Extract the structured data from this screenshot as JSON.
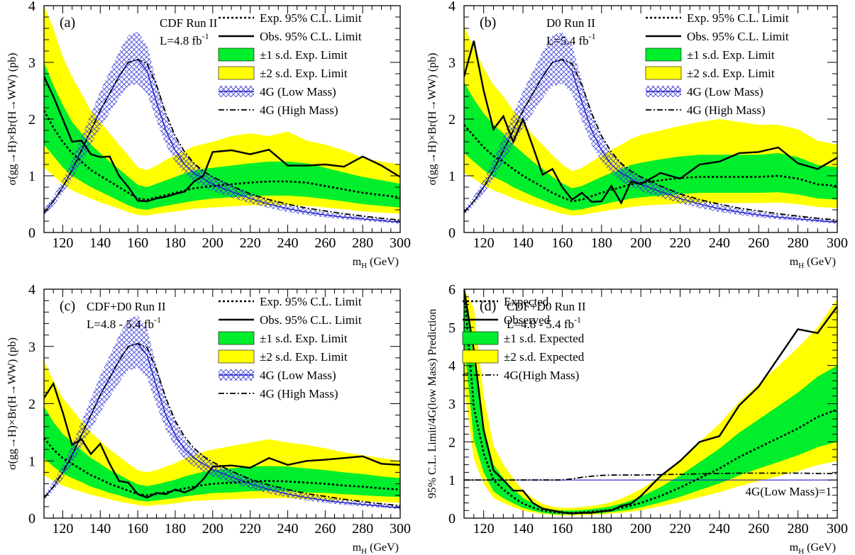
{
  "chart_data": [
    {
      "type": "line",
      "panel_label": "(a)",
      "experiment": "CDF Run II",
      "luminosity": "L=4.8 fb",
      "luminosity_sup": "-1",
      "xlabel": "m",
      "xlabel_sub": "H",
      "xlabel_unit": " (GeV)",
      "ylabel": "σ(gg→H)×Br(H→WW) (pb)",
      "xlim": [
        110,
        300
      ],
      "ylim": [
        0,
        4
      ],
      "xticks": [
        120,
        140,
        160,
        180,
        200,
        220,
        240,
        260,
        280,
        300
      ],
      "yticks": [
        0,
        1,
        2,
        3,
        4
      ],
      "legend": [
        "Exp. 95% C.L. Limit",
        "Obs. 95% C.L. Limit",
        "±1 s.d. Exp. Limit",
        "±2 s.d. Exp. Limit",
        "4G (Low Mass)",
        "4G (High Mass)"
      ],
      "x": [
        110,
        115,
        120,
        125,
        130,
        135,
        140,
        145,
        150,
        155,
        160,
        165,
        170,
        175,
        180,
        185,
        190,
        195,
        200,
        210,
        220,
        230,
        240,
        250,
        260,
        270,
        280,
        290,
        300
      ],
      "series": [
        {
          "name": "Exp. 95% C.L. Limit",
          "values": [
            2.15,
            1.85,
            1.6,
            1.4,
            1.25,
            1.1,
            1.0,
            0.9,
            0.8,
            0.7,
            0.6,
            0.58,
            0.62,
            0.66,
            0.7,
            0.74,
            0.78,
            0.8,
            0.82,
            0.85,
            0.88,
            0.9,
            0.9,
            0.88,
            0.82,
            0.76,
            0.7,
            0.66,
            0.62
          ]
        },
        {
          "name": "Obs. 95% C.L. Limit",
          "values": [
            2.75,
            2.4,
            2.0,
            1.6,
            1.62,
            1.38,
            1.33,
            1.34,
            1.0,
            0.8,
            0.56,
            0.55,
            0.6,
            0.63,
            0.68,
            0.72,
            0.9,
            1.0,
            1.42,
            1.45,
            1.38,
            1.46,
            1.18,
            1.18,
            1.2,
            1.16,
            1.34,
            1.18,
            0.98
          ]
        },
        {
          "name": "±1 s.d. Exp. Limit",
          "lower": [
            1.55,
            1.35,
            1.15,
            1.0,
            0.9,
            0.8,
            0.72,
            0.64,
            0.56,
            0.48,
            0.42,
            0.4,
            0.44,
            0.47,
            0.5,
            0.53,
            0.56,
            0.58,
            0.6,
            0.62,
            0.64,
            0.65,
            0.65,
            0.63,
            0.59,
            0.55,
            0.5,
            0.47,
            0.44
          ],
          "upper": [
            3.0,
            2.6,
            2.25,
            1.95,
            1.75,
            1.55,
            1.4,
            1.25,
            1.12,
            0.98,
            0.84,
            0.8,
            0.86,
            0.92,
            0.98,
            1.04,
            1.09,
            1.12,
            1.14,
            1.18,
            1.22,
            1.25,
            1.25,
            1.22,
            1.14,
            1.06,
            0.98,
            0.92,
            0.86
          ]
        },
        {
          "name": "±2 s.d. Exp. Limit",
          "lower": [
            1.15,
            1.0,
            0.85,
            0.74,
            0.67,
            0.6,
            0.53,
            0.48,
            0.42,
            0.36,
            0.31,
            0.3,
            0.33,
            0.35,
            0.37,
            0.39,
            0.42,
            0.43,
            0.44,
            0.46,
            0.48,
            0.48,
            0.48,
            0.47,
            0.44,
            0.41,
            0.37,
            0.35,
            0.33
          ],
          "upper": [
            4.0,
            3.6,
            3.1,
            2.75,
            2.45,
            2.15,
            1.95,
            1.75,
            1.55,
            1.36,
            1.15,
            1.1,
            1.18,
            1.28,
            1.36,
            1.44,
            1.52,
            1.56,
            1.6,
            1.7,
            1.75,
            1.7,
            1.78,
            1.62,
            1.55,
            1.45,
            1.32,
            1.25,
            1.2
          ]
        }
      ]
    },
    {
      "type": "line",
      "panel_label": "(b)",
      "experiment": "D0 Run II",
      "luminosity": "L=5.4 fb",
      "luminosity_sup": "-1",
      "xlabel": "m",
      "xlabel_sub": "H",
      "xlabel_unit": " (GeV)",
      "ylabel": "σ(gg→H)×Br(H→WW) (pb)",
      "xlim": [
        110,
        300
      ],
      "ylim": [
        0,
        4
      ],
      "xticks": [
        120,
        140,
        160,
        180,
        200,
        220,
        240,
        260,
        280,
        300
      ],
      "yticks": [
        0,
        1,
        2,
        3,
        4
      ],
      "legend": [
        "Exp. 95% C.L. Limit",
        "Obs. 95% C.L. Limit",
        "±1 s.d. Exp. Limit",
        "±2 s.d. Exp. Limit",
        "4G (Low Mass)",
        "4G (High Mass)"
      ],
      "x": [
        110,
        115,
        120,
        125,
        130,
        135,
        140,
        145,
        150,
        155,
        160,
        165,
        170,
        175,
        180,
        185,
        190,
        195,
        200,
        210,
        220,
        230,
        240,
        250,
        260,
        270,
        280,
        290,
        300
      ],
      "series": [
        {
          "name": "Exp. 95% C.L. Limit",
          "values": [
            1.9,
            1.7,
            1.5,
            1.35,
            1.25,
            1.12,
            1.0,
            0.9,
            0.8,
            0.7,
            0.62,
            0.55,
            0.58,
            0.64,
            0.7,
            0.75,
            0.8,
            0.85,
            0.88,
            0.92,
            0.96,
            0.98,
            0.98,
            0.98,
            0.98,
            1.0,
            0.95,
            0.85,
            0.82
          ]
        },
        {
          "name": "Obs. 95% C.L. Limit",
          "values": [
            2.75,
            3.38,
            2.5,
            1.82,
            2.05,
            1.6,
            2.0,
            1.52,
            1.02,
            1.12,
            0.8,
            0.58,
            0.7,
            0.54,
            0.55,
            0.82,
            0.52,
            0.9,
            0.85,
            1.05,
            0.95,
            1.2,
            1.25,
            1.4,
            1.42,
            1.5,
            1.22,
            1.12,
            1.32
          ]
        },
        {
          "name": "±1 s.d. Exp. Limit",
          "lower": [
            1.4,
            1.25,
            1.1,
            0.98,
            0.9,
            0.8,
            0.72,
            0.64,
            0.57,
            0.5,
            0.44,
            0.39,
            0.41,
            0.45,
            0.49,
            0.53,
            0.56,
            0.6,
            0.62,
            0.65,
            0.68,
            0.7,
            0.7,
            0.7,
            0.7,
            0.71,
            0.67,
            0.6,
            0.58
          ],
          "upper": [
            2.65,
            2.35,
            2.1,
            1.9,
            1.75,
            1.55,
            1.4,
            1.25,
            1.12,
            0.98,
            0.87,
            0.78,
            0.82,
            0.9,
            0.98,
            1.05,
            1.12,
            1.19,
            1.23,
            1.29,
            1.34,
            1.37,
            1.37,
            1.37,
            1.37,
            1.4,
            1.33,
            1.19,
            1.15
          ]
        },
        {
          "name": "±2 s.d. Exp. Limit",
          "lower": [
            1.05,
            0.95,
            0.83,
            0.74,
            0.68,
            0.6,
            0.54,
            0.48,
            0.43,
            0.38,
            0.33,
            0.3,
            0.31,
            0.34,
            0.37,
            0.4,
            0.42,
            0.45,
            0.47,
            0.49,
            0.51,
            0.52,
            0.52,
            0.52,
            0.52,
            0.53,
            0.5,
            0.45,
            0.43
          ],
          "upper": [
            3.65,
            3.25,
            2.9,
            2.6,
            2.4,
            2.15,
            1.95,
            1.72,
            1.55,
            1.36,
            1.2,
            1.08,
            1.14,
            1.25,
            1.36,
            1.46,
            1.55,
            1.65,
            1.72,
            1.8,
            1.88,
            1.95,
            2.0,
            1.95,
            1.9,
            1.9,
            1.82,
            1.62,
            1.55
          ]
        }
      ]
    },
    {
      "type": "line",
      "panel_label": "(c)",
      "experiment": "CDF+D0 Run II",
      "luminosity": "L=4.8 - 5.4 fb",
      "luminosity_sup": "-1",
      "xlabel": "m",
      "xlabel_sub": "H",
      "xlabel_unit": " (GeV)",
      "ylabel": "σ(gg→H)×Br(H→WW) (pb)",
      "xlim": [
        110,
        300
      ],
      "ylim": [
        0,
        4
      ],
      "xticks": [
        120,
        140,
        160,
        180,
        200,
        220,
        240,
        260,
        280,
        300
      ],
      "yticks": [
        0,
        1,
        2,
        3,
        4
      ],
      "legend": [
        "Exp. 95% C.L. Limit",
        "Obs. 95% C.L. Limit",
        "±1 s.d. Exp. Limit",
        "±2 s.d. Exp. Limit",
        "4G (Low Mass)",
        "4G (High Mass)"
      ],
      "x": [
        110,
        115,
        120,
        125,
        130,
        135,
        140,
        145,
        150,
        155,
        160,
        165,
        170,
        175,
        180,
        185,
        190,
        195,
        200,
        210,
        220,
        230,
        240,
        250,
        260,
        270,
        280,
        290,
        300
      ],
      "series": [
        {
          "name": "Exp. 95% C.L. Limit",
          "values": [
            1.4,
            1.2,
            1.05,
            0.95,
            0.85,
            0.75,
            0.68,
            0.6,
            0.54,
            0.48,
            0.42,
            0.4,
            0.42,
            0.45,
            0.48,
            0.52,
            0.55,
            0.58,
            0.6,
            0.62,
            0.64,
            0.65,
            0.64,
            0.62,
            0.6,
            0.57,
            0.55,
            0.52,
            0.5
          ]
        },
        {
          "name": "Obs. 95% C.L. Limit",
          "values": [
            2.1,
            2.35,
            1.85,
            1.28,
            1.38,
            1.12,
            1.3,
            0.95,
            0.65,
            0.62,
            0.42,
            0.36,
            0.44,
            0.42,
            0.5,
            0.45,
            0.52,
            0.68,
            0.9,
            0.92,
            0.88,
            1.05,
            0.93,
            1.0,
            1.02,
            1.05,
            1.08,
            0.95,
            0.93
          ]
        },
        {
          "name": "±1 s.d. Exp. Limit",
          "lower": [
            1.05,
            0.9,
            0.78,
            0.7,
            0.63,
            0.55,
            0.5,
            0.44,
            0.4,
            0.35,
            0.31,
            0.29,
            0.31,
            0.33,
            0.35,
            0.38,
            0.4,
            0.42,
            0.44,
            0.45,
            0.47,
            0.48,
            0.47,
            0.45,
            0.44,
            0.42,
            0.4,
            0.38,
            0.37
          ],
          "upper": [
            1.95,
            1.68,
            1.47,
            1.33,
            1.19,
            1.05,
            0.95,
            0.84,
            0.76,
            0.67,
            0.59,
            0.56,
            0.59,
            0.63,
            0.67,
            0.73,
            0.77,
            0.81,
            0.84,
            0.87,
            0.9,
            0.91,
            0.9,
            0.87,
            0.84,
            0.8,
            0.77,
            0.73,
            0.7
          ]
        },
        {
          "name": "±2 s.d. Exp. Limit",
          "lower": [
            0.75,
            0.65,
            0.57,
            0.51,
            0.46,
            0.41,
            0.37,
            0.33,
            0.29,
            0.26,
            0.23,
            0.21,
            0.23,
            0.24,
            0.26,
            0.28,
            0.3,
            0.31,
            0.32,
            0.33,
            0.34,
            0.35,
            0.35,
            0.33,
            0.32,
            0.31,
            0.3,
            0.28,
            0.27
          ],
          "upper": [
            2.75,
            2.4,
            2.1,
            1.9,
            1.7,
            1.5,
            1.35,
            1.2,
            1.08,
            0.95,
            0.84,
            0.8,
            0.84,
            0.9,
            0.96,
            1.04,
            1.1,
            1.16,
            1.2,
            1.26,
            1.32,
            1.38,
            1.32,
            1.28,
            1.22,
            1.15,
            1.1,
            1.05,
            1.0
          ]
        }
      ]
    },
    {
      "type": "line",
      "panel_label": "(d)",
      "experiment": "CDF+D0 Run II",
      "luminosity": "L=4.8 - 5.4 fb",
      "luminosity_sup": "-1",
      "xlabel": "m",
      "xlabel_sub": "H",
      "xlabel_unit": " (GeV)",
      "ylabel": "95% C.L. Limit/4G(low Mass) Prediction",
      "xlim": [
        110,
        300
      ],
      "ylim": [
        0,
        6
      ],
      "xticks": [
        120,
        140,
        160,
        180,
        200,
        220,
        240,
        260,
        280,
        300
      ],
      "yticks": [
        0,
        1,
        2,
        3,
        4,
        5,
        6
      ],
      "legend": [
        "Expected",
        "Observed",
        "±1 s.d. Expected",
        "±2 s.d. Expected",
        "4G(High Mass)"
      ],
      "reference_line": {
        "y": 1,
        "label": "4G(Low Mass)=1"
      },
      "x": [
        110,
        115,
        120,
        125,
        130,
        135,
        140,
        145,
        150,
        155,
        160,
        165,
        170,
        175,
        180,
        185,
        190,
        195,
        200,
        210,
        220,
        230,
        240,
        250,
        260,
        270,
        280,
        290,
        300
      ],
      "series": [
        {
          "name": "Expected",
          "values": [
            6.5,
            2.9,
            1.7,
            1.0,
            0.75,
            0.55,
            0.38,
            0.28,
            0.2,
            0.16,
            0.14,
            0.14,
            0.15,
            0.17,
            0.19,
            0.22,
            0.27,
            0.33,
            0.4,
            0.58,
            0.8,
            1.05,
            1.3,
            1.6,
            1.85,
            2.1,
            2.35,
            2.65,
            2.85
          ]
        },
        {
          "name": "Observed",
          "values": [
            6.5,
            4.4,
            2.3,
            1.25,
            1.0,
            0.72,
            0.72,
            0.4,
            0.25,
            0.2,
            0.15,
            0.12,
            0.14,
            0.14,
            0.18,
            0.2,
            0.32,
            0.38,
            0.58,
            1.1,
            1.5,
            2.0,
            2.15,
            2.95,
            3.45,
            4.2,
            4.95,
            4.85,
            5.55
          ]
        },
        {
          "name": "±1 s.d. Expected",
          "lower": [
            4.6,
            2.05,
            1.2,
            0.7,
            0.52,
            0.39,
            0.27,
            0.2,
            0.14,
            0.11,
            0.1,
            0.1,
            0.11,
            0.12,
            0.13,
            0.16,
            0.19,
            0.23,
            0.28,
            0.41,
            0.56,
            0.74,
            0.91,
            1.12,
            1.3,
            1.47,
            1.65,
            1.86,
            2.0
          ],
          "upper": [
            6.5,
            4.1,
            2.4,
            1.4,
            1.05,
            0.77,
            0.53,
            0.39,
            0.28,
            0.22,
            0.2,
            0.2,
            0.21,
            0.24,
            0.27,
            0.31,
            0.38,
            0.46,
            0.56,
            0.81,
            1.12,
            1.47,
            1.82,
            2.24,
            2.59,
            2.94,
            3.29,
            3.71,
            4.0
          ]
        },
        {
          "name": "±2 s.d. Expected",
          "lower": [
            3.5,
            1.55,
            0.9,
            0.53,
            0.4,
            0.29,
            0.2,
            0.15,
            0.11,
            0.09,
            0.07,
            0.07,
            0.08,
            0.09,
            0.1,
            0.12,
            0.14,
            0.17,
            0.21,
            0.31,
            0.42,
            0.55,
            0.68,
            0.84,
            0.97,
            1.1,
            1.23,
            1.39,
            1.5
          ],
          "upper": [
            6.5,
            5.5,
            3.2,
            1.9,
            1.42,
            1.04,
            0.72,
            0.53,
            0.38,
            0.3,
            0.27,
            0.27,
            0.29,
            0.32,
            0.36,
            0.42,
            0.51,
            0.63,
            0.76,
            1.1,
            1.52,
            2.0,
            2.47,
            3.04,
            3.52,
            3.99,
            4.47,
            5.0,
            5.75
          ]
        }
      ]
    }
  ]
}
